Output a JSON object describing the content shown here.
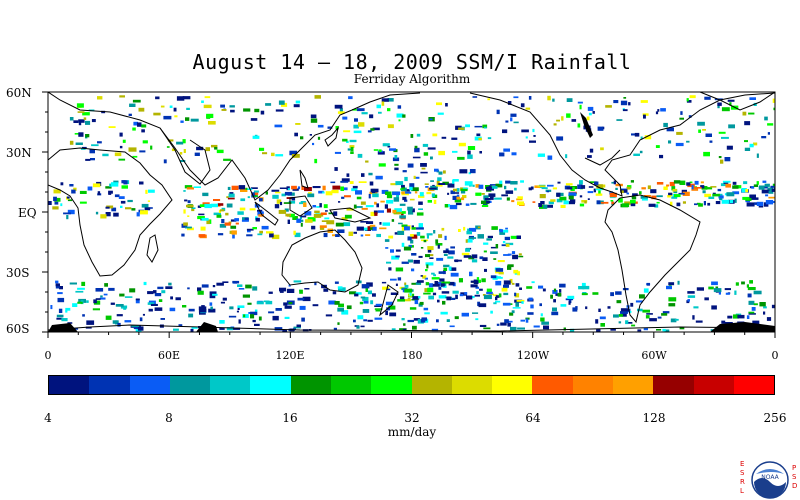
{
  "title": "August 14 – 18, 2009 SSM/I Rainfall",
  "subtitle": "Ferriday Algorithm",
  "map": {
    "lat_labels": [
      "60N",
      "30N",
      "EQ",
      "30S",
      "60S"
    ],
    "lon_labels": [
      "0",
      "60E",
      "120E",
      "180",
      "120W",
      "60W",
      "0"
    ],
    "land_color": "#ffffff",
    "coastline_color": "#000000",
    "polar_land_color": "#000000"
  },
  "colorbar": {
    "colors": [
      "#00137e",
      "#0033b3",
      "#0a5cf5",
      "#00989e",
      "#00c8c8",
      "#00ffff",
      "#009400",
      "#00c800",
      "#00ff00",
      "#b4b400",
      "#dcdc00",
      "#ffff00",
      "#ff5a00",
      "#ff8200",
      "#ffa000",
      "#960000",
      "#c80000",
      "#ff0000"
    ],
    "tick_labels": [
      "4",
      "8",
      "16",
      "32",
      "64",
      "128",
      "256"
    ],
    "units": "mm/day",
    "scale": "log2"
  },
  "logo": {
    "left_letters": [
      "E",
      "S",
      "R",
      "L"
    ],
    "right_letters": [
      "P",
      "S",
      "D"
    ],
    "emblem": "NOAA"
  }
}
